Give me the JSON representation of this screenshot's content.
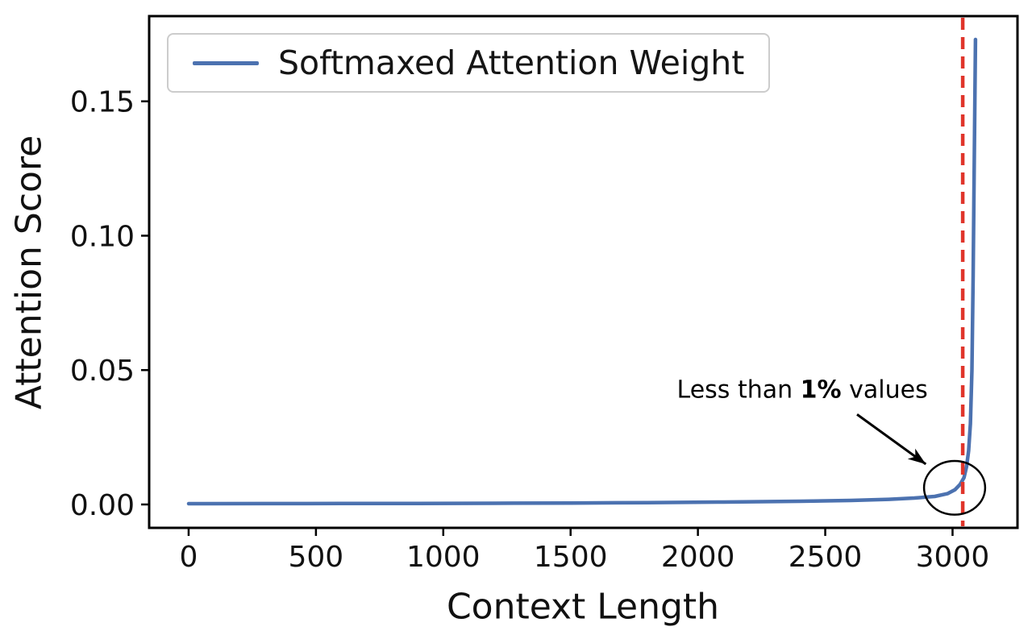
{
  "figure": {
    "background_color": "#ffffff"
  },
  "chart_data": {
    "type": "line",
    "title": "",
    "xlabel": "Context Length",
    "ylabel": "Attention Score",
    "xlim": [
      -155,
      3255
    ],
    "ylim": [
      -0.0087,
      0.1817
    ],
    "xticks": [
      0,
      500,
      1000,
      1500,
      2000,
      2500,
      3000
    ],
    "xtick_labels": [
      "0",
      "500",
      "1000",
      "1500",
      "2000",
      "2500",
      "3000"
    ],
    "yticks": [
      0.0,
      0.05,
      0.1,
      0.15
    ],
    "ytick_labels": [
      "0.00",
      "0.05",
      "0.10",
      "0.15"
    ],
    "grid": false,
    "legend": {
      "position": "upper-left",
      "entries": [
        {
          "label": "Softmaxed Attention Weight",
          "color": "#4C72B0"
        }
      ]
    },
    "series": [
      {
        "name": "Softmaxed Attention Weight",
        "color": "#4C72B0",
        "x": [
          0,
          300,
          600,
          900,
          1200,
          1500,
          1800,
          2100,
          2400,
          2600,
          2750,
          2850,
          2930,
          2980,
          3010,
          3030,
          3045,
          3055,
          3063,
          3070,
          3076,
          3081,
          3085,
          3088,
          3090
        ],
        "y": [
          0.0003,
          0.00032,
          0.00035,
          0.0004,
          0.00045,
          0.00055,
          0.0007,
          0.0009,
          0.0012,
          0.0015,
          0.0019,
          0.0024,
          0.003,
          0.004,
          0.0055,
          0.0075,
          0.01,
          0.014,
          0.02,
          0.03,
          0.05,
          0.085,
          0.125,
          0.155,
          0.173
        ]
      }
    ],
    "vline": {
      "x": 3040,
      "color": "#E0352B",
      "style": "dashed"
    },
    "annotation": {
      "text_prefix": "Less than ",
      "text_bold": "1%",
      "text_suffix": " values",
      "text_pos": [
        2410,
        0.0425
      ],
      "arrow_start": [
        2625,
        0.0335
      ],
      "arrow_end": [
        2895,
        0.015
      ],
      "arrow_color": "#000000",
      "circle": {
        "x": 3008,
        "y": 0.0062,
        "rx": 120,
        "ry": 0.01,
        "color": "#000000"
      }
    },
    "axis_color": "#000000"
  }
}
